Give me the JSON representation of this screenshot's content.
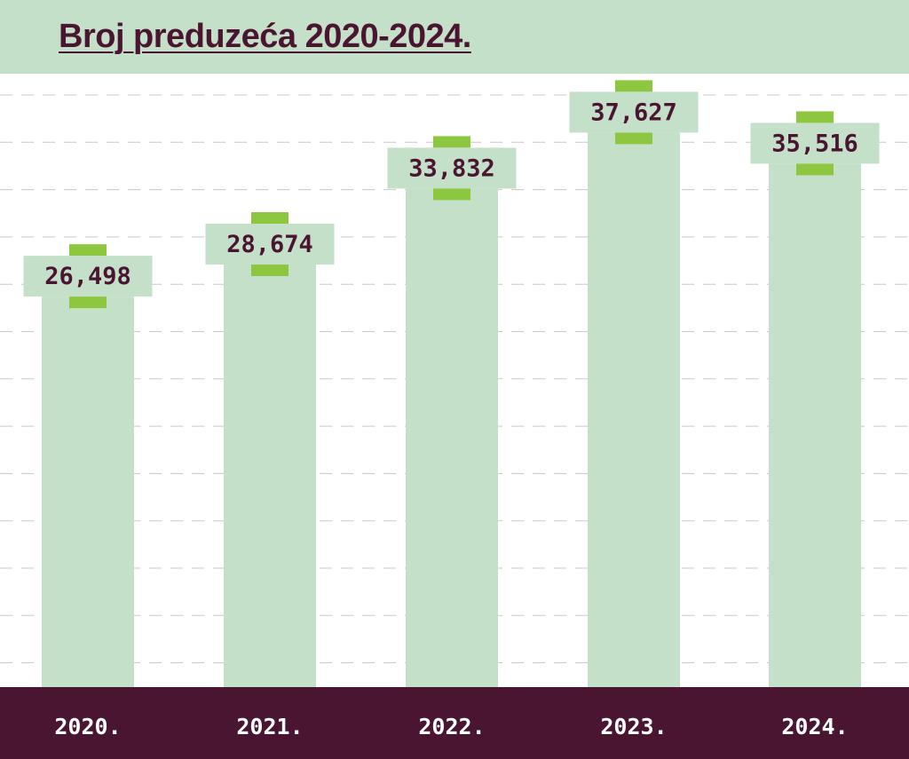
{
  "chart_data": {
    "type": "bar",
    "title": "Broj preduzeća 2020-2024.",
    "categories": [
      "2020.",
      "2021.",
      "2022.",
      "2023.",
      "2024."
    ],
    "values": [
      26498,
      28674,
      33832,
      37627,
      35516
    ],
    "value_labels": [
      "26,498",
      "28,674",
      "33,832",
      "37,627",
      "35,516"
    ],
    "grid": true,
    "legend": "none"
  },
  "colors": {
    "header_bg": "#c5e0c8",
    "bar": "#c5e0c8",
    "accent": "#8dc63f",
    "text_dark": "#4a1530",
    "footer_bg": "#4a1530",
    "footer_text": "#ffffff",
    "grid": "#c8c8c8"
  }
}
